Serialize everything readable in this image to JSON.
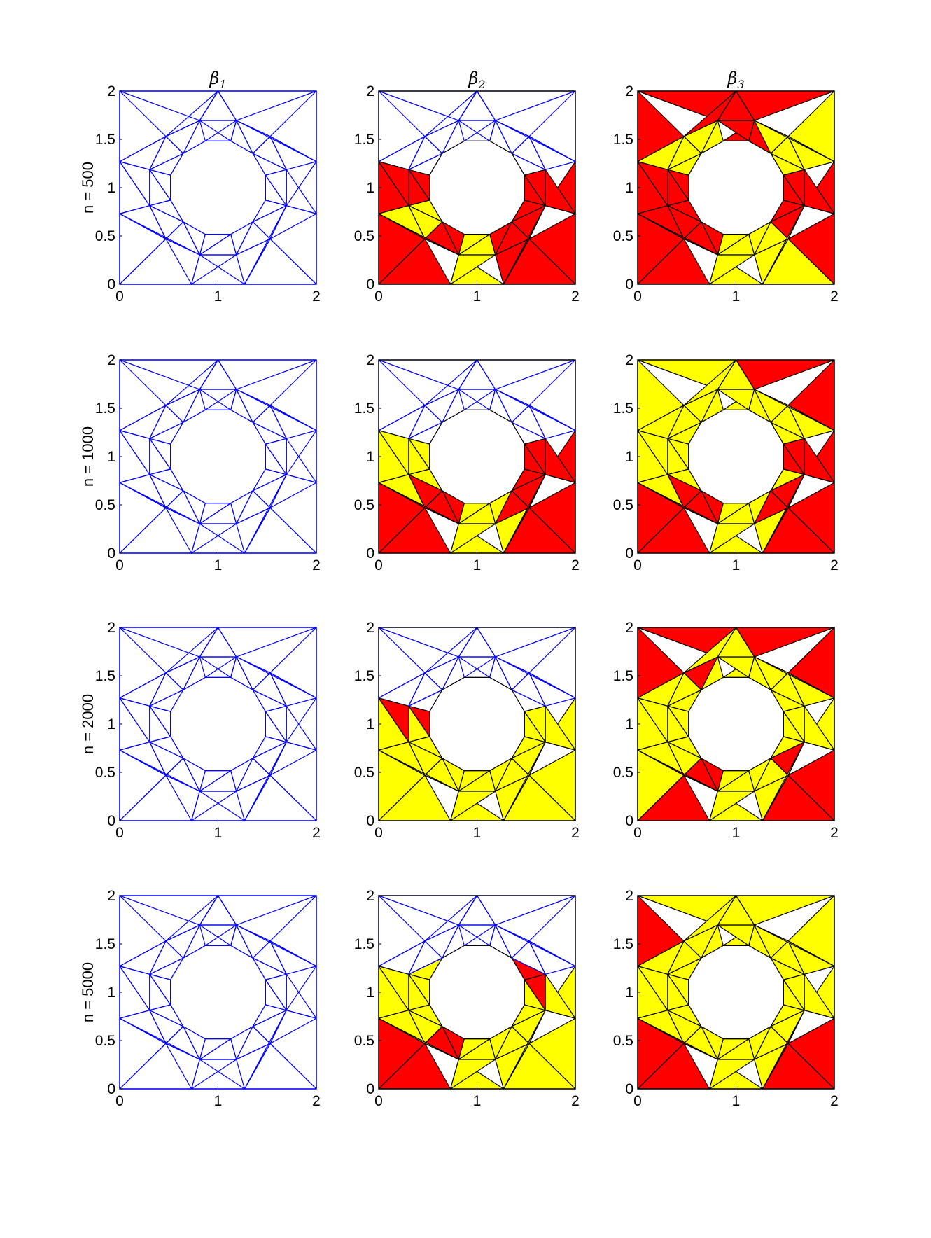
{
  "chart_data": {
    "type": "mesh-grid",
    "column_titles": [
      {
        "base": "β",
        "sub": "1"
      },
      {
        "base": "β",
        "sub": "2"
      },
      {
        "base": "β",
        "sub": "3"
      }
    ],
    "row_labels": [
      "n = 500",
      "n = 1000",
      "n = 2000",
      "n = 5000"
    ],
    "xlim": [
      0,
      2
    ],
    "ylim": [
      0,
      2
    ],
    "xticks": [
      "0",
      "1",
      "2"
    ],
    "yticks": [
      "0",
      "0.5",
      "1",
      "1.5",
      "2"
    ],
    "domain": "unit-square [0,2]x[0,2] with circular hole of radius 0.5 centered at (1,1)",
    "colors": {
      "mesh_line": "#0000ff",
      "colored_edge": "#000000",
      "region_a": "#ff0000",
      "region_b": "#ffff00"
    },
    "panels_summary": [
      [
        "blue-mesh",
        "red-yellow-bottom",
        "red-yellow-mostly-red"
      ],
      [
        "blue-mesh",
        "red-yellow-bottom",
        "red-yellow-mixed"
      ],
      [
        "blue-mesh",
        "yellow-bottom",
        "yellow-red-mixed"
      ],
      [
        "blue-mesh",
        "yellow-red-bottom",
        "yellow-red-full"
      ]
    ]
  }
}
